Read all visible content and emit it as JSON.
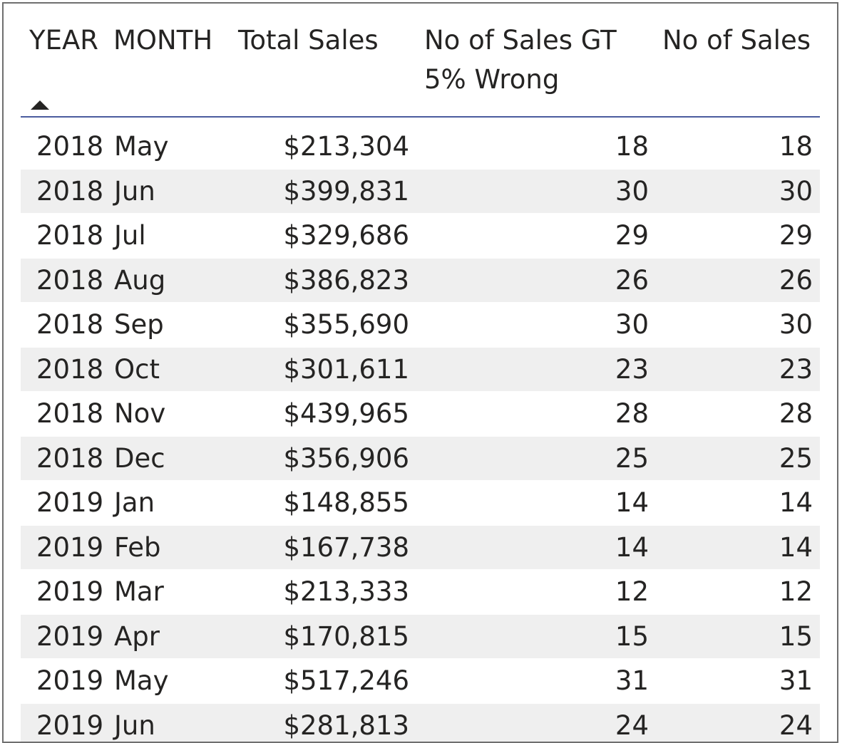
{
  "table": {
    "columns": [
      {
        "key": "year",
        "label": "YEAR"
      },
      {
        "key": "month",
        "label": "MONTH"
      },
      {
        "key": "total_sales",
        "label": "Total Sales"
      },
      {
        "key": "no_sales_gt_5_wrong",
        "label": "No of Sales GT 5% Wrong"
      },
      {
        "key": "no_of_sales",
        "label": "No of Sales"
      }
    ],
    "sort": {
      "column": "year",
      "direction": "ascending",
      "icon": "sort-ascending-icon"
    },
    "rows": [
      {
        "year": "2018",
        "month": "May",
        "total_sales": "$213,304",
        "no_sales_gt_5_wrong": "18",
        "no_of_sales": "18"
      },
      {
        "year": "2018",
        "month": "Jun",
        "total_sales": "$399,831",
        "no_sales_gt_5_wrong": "30",
        "no_of_sales": "30"
      },
      {
        "year": "2018",
        "month": "Jul",
        "total_sales": "$329,686",
        "no_sales_gt_5_wrong": "29",
        "no_of_sales": "29"
      },
      {
        "year": "2018",
        "month": "Aug",
        "total_sales": "$386,823",
        "no_sales_gt_5_wrong": "26",
        "no_of_sales": "26"
      },
      {
        "year": "2018",
        "month": "Sep",
        "total_sales": "$355,690",
        "no_sales_gt_5_wrong": "30",
        "no_of_sales": "30"
      },
      {
        "year": "2018",
        "month": "Oct",
        "total_sales": "$301,611",
        "no_sales_gt_5_wrong": "23",
        "no_of_sales": "23"
      },
      {
        "year": "2018",
        "month": "Nov",
        "total_sales": "$439,965",
        "no_sales_gt_5_wrong": "28",
        "no_of_sales": "28"
      },
      {
        "year": "2018",
        "month": "Dec",
        "total_sales": "$356,906",
        "no_sales_gt_5_wrong": "25",
        "no_of_sales": "25"
      },
      {
        "year": "2019",
        "month": "Jan",
        "total_sales": "$148,855",
        "no_sales_gt_5_wrong": "14",
        "no_of_sales": "14"
      },
      {
        "year": "2019",
        "month": "Feb",
        "total_sales": "$167,738",
        "no_sales_gt_5_wrong": "14",
        "no_of_sales": "14"
      },
      {
        "year": "2019",
        "month": "Mar",
        "total_sales": "$213,333",
        "no_sales_gt_5_wrong": "12",
        "no_of_sales": "12"
      },
      {
        "year": "2019",
        "month": "Apr",
        "total_sales": "$170,815",
        "no_sales_gt_5_wrong": "15",
        "no_of_sales": "15"
      },
      {
        "year": "2019",
        "month": "May",
        "total_sales": "$517,246",
        "no_sales_gt_5_wrong": "31",
        "no_of_sales": "31"
      },
      {
        "year": "2019",
        "month": "Jun",
        "total_sales": "$281,813",
        "no_sales_gt_5_wrong": "24",
        "no_of_sales": "24"
      }
    ]
  },
  "colors": {
    "header_rule": "#4a5c9e",
    "alt_row": "#efefef",
    "text": "#252423"
  }
}
